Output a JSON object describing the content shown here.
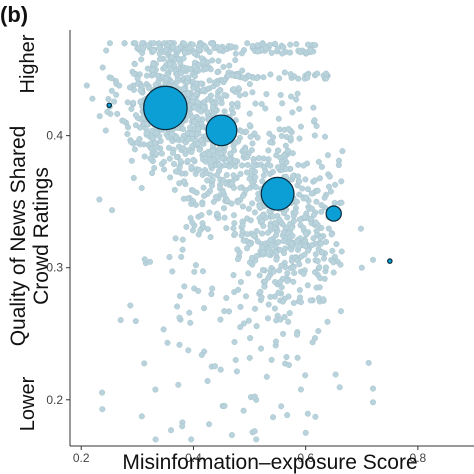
{
  "panel_label": "(b)",
  "chart_data": {
    "type": "scatter",
    "xlabel": "Misinformation–exposure Score",
    "ylabel_lines": [
      "Quality of News Shared",
      "Crowd Ratings"
    ],
    "y_end_labels": {
      "top": "Higher",
      "bottom": "Lower"
    },
    "xlim": [
      0.18,
      0.9
    ],
    "ylim": [
      0.165,
      0.48
    ],
    "x_ticks": [
      0.2,
      0.4,
      0.6,
      0.8
    ],
    "y_ticks": [
      0.2,
      0.3,
      0.4
    ],
    "grid": false,
    "colors": {
      "points": "#b9d3dc",
      "points_edge": "#9fbcc7",
      "bubbles": "#0b9fd6",
      "bubbles_edge": "#0a2a3a",
      "axis": "#333333"
    },
    "binned_means": [
      {
        "x": 0.25,
        "y": 0.423,
        "n": 14
      },
      {
        "x": 0.35,
        "y": 0.421,
        "n": 1400
      },
      {
        "x": 0.45,
        "y": 0.404,
        "n": 700
      },
      {
        "x": 0.55,
        "y": 0.356,
        "n": 800
      },
      {
        "x": 0.65,
        "y": 0.341,
        "n": 170
      },
      {
        "x": 0.75,
        "y": 0.305,
        "n": 2
      }
    ]
  }
}
